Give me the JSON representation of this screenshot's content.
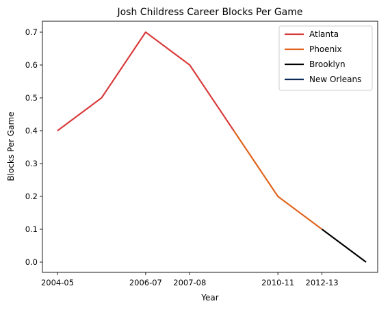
{
  "chart_data": {
    "type": "line",
    "title": "Josh Childress Career Blocks Per Game",
    "xlabel": "Year",
    "ylabel": "Blocks Per Game",
    "x_index_range": [
      0,
      7
    ],
    "x_ticks": [
      {
        "index": 0,
        "label": "2004-05"
      },
      {
        "index": 2,
        "label": "2006-07"
      },
      {
        "index": 3,
        "label": "2007-08"
      },
      {
        "index": 5,
        "label": "2010-11"
      },
      {
        "index": 6,
        "label": "2012-13"
      }
    ],
    "ylim": [
      0.0,
      0.7
    ],
    "y_ticks": [
      "0.0",
      "0.1",
      "0.2",
      "0.3",
      "0.4",
      "0.5",
      "0.6",
      "0.7"
    ],
    "grid": false,
    "legend_position": "top-right",
    "series": [
      {
        "name": "Atlanta",
        "color": "#d93b3b",
        "points": [
          [
            0,
            0.4
          ],
          [
            1,
            0.5
          ],
          [
            2,
            0.7
          ],
          [
            3,
            0.6
          ],
          [
            4,
            0.4
          ]
        ]
      },
      {
        "name": "Phoenix",
        "color": "#e0641d",
        "points": [
          [
            4,
            0.4
          ],
          [
            5,
            0.2
          ],
          [
            6,
            0.1
          ]
        ]
      },
      {
        "name": "Brooklyn",
        "color": "#000000",
        "points": [
          [
            6,
            0.1
          ],
          [
            7,
            0.0
          ]
        ]
      },
      {
        "name": "New Orleans",
        "color": "#0c2c56",
        "points": []
      }
    ]
  }
}
